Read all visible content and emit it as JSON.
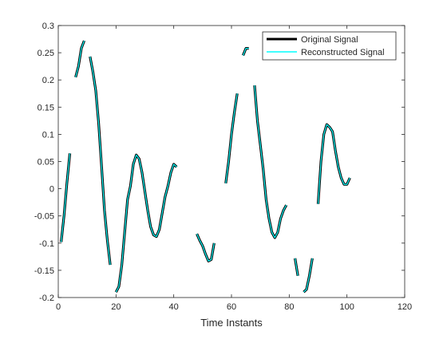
{
  "chart_data": {
    "type": "line",
    "title": "",
    "xlabel": "Time Instants",
    "ylabel": "",
    "xlim": [
      0,
      120
    ],
    "ylim": [
      -0.2,
      0.3
    ],
    "xticks": [
      "0",
      "20",
      "40",
      "60",
      "80",
      "100",
      "120"
    ],
    "yticks": [
      "-0.2",
      "-0.15",
      "-0.1",
      "-0.05",
      "0",
      "0.05",
      "0.1",
      "0.15",
      "0.2",
      "0.25",
      "0.3"
    ],
    "grid": false,
    "legend_position": "top-right",
    "series": [
      {
        "name": "Original Signal",
        "color": "#000000",
        "segments": [
          [
            [
              1,
              -0.098
            ],
            [
              2,
              -0.05
            ],
            [
              3,
              0.01
            ],
            [
              4,
              0.065
            ]
          ],
          [
            [
              6,
              0.205
            ],
            [
              7,
              0.225
            ],
            [
              8,
              0.258
            ],
            [
              9,
              0.272
            ]
          ],
          [
            [
              11,
              0.243
            ],
            [
              12,
              0.215
            ],
            [
              13,
              0.18
            ],
            [
              14,
              0.12
            ],
            [
              15,
              0.04
            ],
            [
              16,
              -0.04
            ],
            [
              17,
              -0.095
            ],
            [
              18,
              -0.14
            ]
          ],
          [
            [
              20,
              -0.19
            ],
            [
              21,
              -0.18
            ],
            [
              22,
              -0.14
            ],
            [
              23,
              -0.08
            ],
            [
              24,
              -0.02
            ],
            [
              25,
              0.005
            ],
            [
              26,
              0.045
            ],
            [
              27,
              0.062
            ],
            [
              28,
              0.055
            ],
            [
              29,
              0.03
            ],
            [
              30,
              -0.005
            ],
            [
              31,
              -0.04
            ],
            [
              32,
              -0.07
            ],
            [
              33,
              -0.085
            ],
            [
              34,
              -0.088
            ],
            [
              35,
              -0.075
            ],
            [
              36,
              -0.045
            ],
            [
              37,
              -0.015
            ],
            [
              38,
              0.005
            ],
            [
              39,
              0.03
            ],
            [
              40,
              0.045
            ],
            [
              41,
              0.04
            ]
          ],
          [
            [
              48,
              -0.083
            ],
            [
              49,
              -0.095
            ],
            [
              50,
              -0.105
            ],
            [
              51,
              -0.12
            ],
            [
              52,
              -0.133
            ],
            [
              53,
              -0.13
            ],
            [
              54,
              -0.1
            ]
          ],
          [
            [
              58,
              0.01
            ],
            [
              59,
              0.05
            ],
            [
              60,
              0.1
            ],
            [
              61,
              0.14
            ],
            [
              62,
              0.175
            ]
          ],
          [
            [
              64,
              0.245
            ],
            [
              65,
              0.258
            ],
            [
              66,
              0.258
            ]
          ],
          [
            [
              68,
              0.19
            ],
            [
              69,
              0.125
            ],
            [
              70,
              0.08
            ],
            [
              71,
              0.035
            ],
            [
              72,
              -0.02
            ],
            [
              73,
              -0.055
            ],
            [
              74,
              -0.08
            ],
            [
              75,
              -0.09
            ],
            [
              76,
              -0.08
            ],
            [
              77,
              -0.055
            ],
            [
              78,
              -0.04
            ],
            [
              79,
              -0.03
            ]
          ],
          [
            [
              82,
              -0.128
            ],
            [
              83,
              -0.16
            ]
          ],
          [
            [
              85,
              -0.19
            ],
            [
              86,
              -0.185
            ],
            [
              87,
              -0.16
            ],
            [
              88,
              -0.128
            ]
          ],
          [
            [
              90,
              -0.028
            ],
            [
              91,
              0.05
            ],
            [
              92,
              0.1
            ],
            [
              93,
              0.118
            ],
            [
              94,
              0.113
            ],
            [
              95,
              0.105
            ],
            [
              96,
              0.07
            ],
            [
              97,
              0.04
            ],
            [
              98,
              0.02
            ],
            [
              99,
              0.008
            ],
            [
              100,
              0.008
            ],
            [
              101,
              0.02
            ]
          ]
        ]
      },
      {
        "name": "Reconstructed Signal",
        "color": "#00ffff",
        "same_as": "Original Signal"
      }
    ]
  }
}
